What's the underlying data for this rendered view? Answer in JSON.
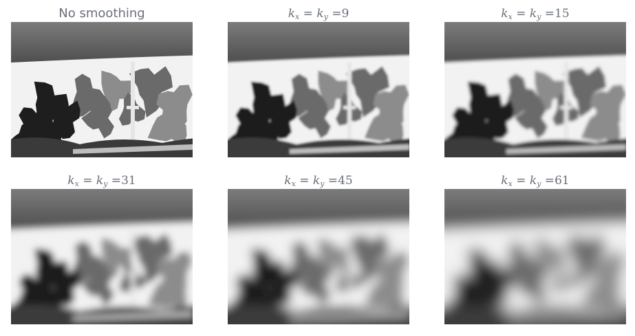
{
  "panels": [
    {
      "title": "No smoothing",
      "kind": "plain",
      "blur": 0
    },
    {
      "title_var": "k",
      "sub_x": "x",
      "sub_y": "y",
      "value": "9",
      "kind": "math",
      "blur": 9
    },
    {
      "title_var": "k",
      "sub_x": "x",
      "sub_y": "y",
      "value": "15",
      "kind": "math",
      "blur": 15
    },
    {
      "title_var": "k",
      "sub_x": "x",
      "sub_y": "y",
      "value": "31",
      "kind": "math",
      "blur": 31
    },
    {
      "title_var": "k",
      "sub_x": "x",
      "sub_y": "y",
      "value": "45",
      "kind": "math",
      "blur": 45
    },
    {
      "title_var": "k",
      "sub_x": "x",
      "sub_y": "y",
      "value": "61",
      "kind": "math",
      "blur": 61
    }
  ],
  "colors": {
    "title": "#6a6f7a",
    "roof": "#6e6e6e",
    "sky": "#f2f2f2",
    "tree_dark": "#1e1e1e",
    "tree_mid": "#6a6a6a",
    "tree_light": "#8c8c8c",
    "pole": "#e6e6e6"
  }
}
